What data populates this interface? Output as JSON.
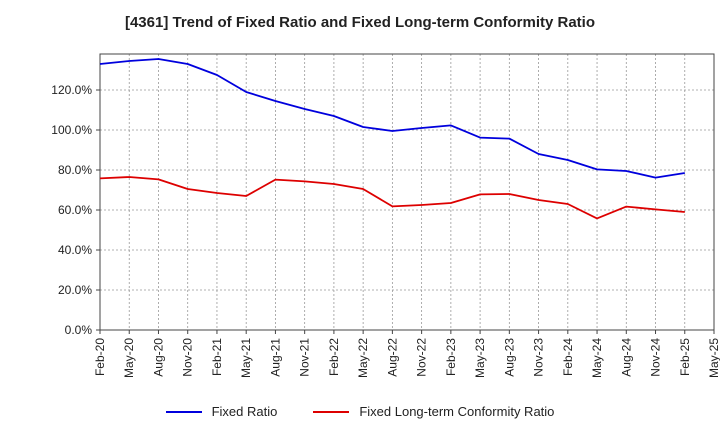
{
  "chart_data": {
    "type": "line",
    "title": "[4361]  Trend of Fixed Ratio and Fixed Long-term Conformity Ratio",
    "xlabel": "",
    "ylabel": "",
    "x_tick_labels": [
      "Feb-20",
      "May-20",
      "Aug-20",
      "Nov-20",
      "Feb-21",
      "May-21",
      "Aug-21",
      "Nov-21",
      "Feb-22",
      "May-22",
      "Aug-22",
      "Nov-22",
      "Feb-23",
      "May-23",
      "Aug-23",
      "Nov-23",
      "Feb-24",
      "May-24",
      "Aug-24",
      "Nov-24",
      "Feb-25",
      "May-25"
    ],
    "y_tick_labels": [
      "0.0%",
      "20.0%",
      "40.0%",
      "60.0%",
      "80.0%",
      "100.0%",
      "120.0%"
    ],
    "y_ticks": [
      0,
      20,
      40,
      60,
      80,
      100,
      120
    ],
    "ylim": [
      0,
      138
    ],
    "grid": true,
    "legend_position": "bottom",
    "categories": [
      "Feb-20",
      "May-20",
      "Aug-20",
      "Nov-20",
      "Feb-21",
      "May-21",
      "Aug-21",
      "Nov-21",
      "Feb-22",
      "May-22",
      "Aug-22",
      "Nov-22",
      "Feb-23",
      "May-23",
      "Aug-23",
      "Nov-23",
      "Feb-24",
      "May-24",
      "Aug-24",
      "Nov-24",
      "Feb-25"
    ],
    "series": [
      {
        "name": "Fixed Ratio",
        "color": "#0000dd",
        "values": [
          133.0,
          134.5,
          135.5,
          133.0,
          127.5,
          119.0,
          114.5,
          110.5,
          107.0,
          101.5,
          99.5,
          101.0,
          102.3,
          96.2,
          95.7,
          88.0,
          85.0,
          80.3,
          79.5,
          76.2,
          78.5
        ]
      },
      {
        "name": "Fixed Long-term Conformity Ratio",
        "color": "#dd0000",
        "values": [
          75.8,
          76.5,
          75.3,
          70.5,
          68.5,
          67.0,
          75.2,
          74.3,
          73.0,
          70.5,
          61.8,
          62.5,
          63.5,
          67.8,
          68.0,
          65.0,
          63.0,
          55.8,
          61.7,
          60.3,
          59.0
        ]
      }
    ]
  }
}
